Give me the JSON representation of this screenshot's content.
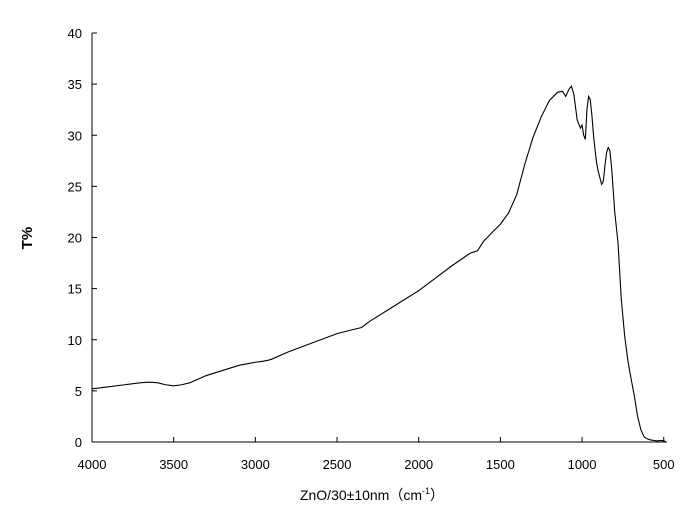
{
  "chart_data": {
    "type": "line",
    "title": "",
    "xlabel": "ZnO/30±10nm（cm",
    "xlabel_sup": "-1",
    "xlabel_close": "）",
    "ylabel": "T%",
    "xlim": [
      4000,
      480
    ],
    "ylim": [
      0,
      40
    ],
    "x_ticks": [
      4000,
      3500,
      3000,
      2500,
      2000,
      1500,
      1000,
      500
    ],
    "y_ticks": [
      0,
      5,
      10,
      15,
      20,
      25,
      30,
      35,
      40
    ],
    "grid": false,
    "series": [
      {
        "color": "#000000",
        "x": [
          4000,
          3900,
          3800,
          3700,
          3650,
          3600,
          3550,
          3500,
          3450,
          3400,
          3300,
          3200,
          3100,
          3000,
          2950,
          2920,
          2900,
          2800,
          2700,
          2600,
          2500,
          2400,
          2350,
          2300,
          2200,
          2100,
          2000,
          1900,
          1800,
          1700,
          1680,
          1660,
          1640,
          1620,
          1600,
          1580,
          1550,
          1500,
          1450,
          1400,
          1350,
          1300,
          1250,
          1200,
          1150,
          1120,
          1100,
          1080,
          1065,
          1050,
          1030,
          1010,
          1000,
          990,
          980,
          970,
          960,
          950,
          940,
          930,
          920,
          910,
          900,
          890,
          880,
          870,
          860,
          850,
          840,
          830,
          820,
          810,
          800,
          780,
          760,
          740,
          720,
          700,
          680,
          660,
          640,
          620,
          600,
          580,
          560,
          540,
          520,
          500,
          490
        ],
        "y": [
          5.2,
          5.4,
          5.6,
          5.8,
          5.85,
          5.8,
          5.6,
          5.5,
          5.6,
          5.8,
          6.5,
          7.0,
          7.5,
          7.8,
          7.9,
          8.0,
          8.1,
          8.8,
          9.4,
          10.0,
          10.6,
          11.0,
          11.2,
          11.8,
          12.8,
          13.8,
          14.8,
          16.0,
          17.2,
          18.3,
          18.5,
          18.6,
          18.7,
          19.2,
          19.7,
          20.0,
          20.5,
          21.3,
          22.4,
          24.2,
          27.2,
          29.8,
          31.8,
          33.4,
          34.2,
          34.3,
          33.8,
          34.5,
          34.8,
          34.0,
          31.5,
          30.7,
          31.0,
          30.0,
          29.6,
          32.5,
          33.8,
          33.5,
          32.0,
          30.0,
          28.5,
          27.2,
          26.4,
          25.8,
          25.2,
          25.5,
          27.0,
          28.3,
          28.8,
          28.5,
          27.0,
          24.8,
          22.5,
          19.5,
          14.0,
          10.5,
          8.0,
          6.2,
          4.5,
          2.5,
          1.2,
          0.5,
          0.3,
          0.2,
          0.15,
          0.1,
          0.15,
          0.12,
          0.05
        ]
      }
    ]
  }
}
